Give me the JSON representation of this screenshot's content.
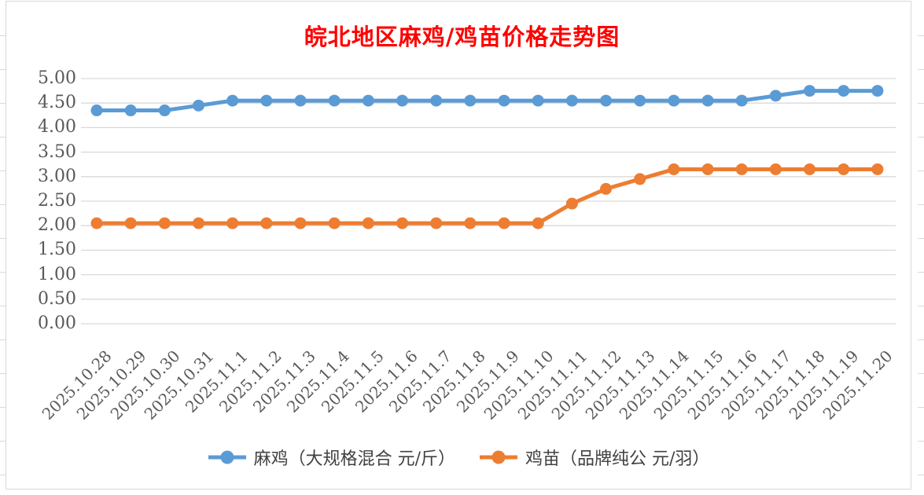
{
  "title": {
    "text": "皖北地区麻鸡/鸡苗价格走势图",
    "color": "#FF0000"
  },
  "chart_data": {
    "type": "line",
    "title": "皖北地区麻鸡/鸡苗价格走势图",
    "categories": [
      "2025.10.28",
      "2025.10.29",
      "2025.10.30",
      "2025.10.31",
      "2025.11.1",
      "2025.11.2",
      "2025.11.3",
      "2025.11.4",
      "2025.11.5",
      "2025.11.6",
      "2025.11.7",
      "2025.11.8",
      "2025.11.9",
      "2025.11.10",
      "2025.11.11",
      "2025.11.12",
      "2025.11.13",
      "2025.11.14",
      "2025.11.15",
      "2025.11.16",
      "2025.11.17",
      "2025.11.18",
      "2025.11.19",
      "2025.11.20"
    ],
    "series": [
      {
        "name": "麻鸡（大规格混合 元/斤）",
        "color": "#5B9BD5",
        "values": [
          4.35,
          4.35,
          4.35,
          4.45,
          4.55,
          4.55,
          4.55,
          4.55,
          4.55,
          4.55,
          4.55,
          4.55,
          4.55,
          4.55,
          4.55,
          4.55,
          4.55,
          4.55,
          4.55,
          4.55,
          4.65,
          4.75,
          4.75,
          4.75
        ]
      },
      {
        "name": "鸡苗（品牌纯公 元/羽）",
        "color": "#ED7D31",
        "values": [
          2.05,
          2.05,
          2.05,
          2.05,
          2.05,
          2.05,
          2.05,
          2.05,
          2.05,
          2.05,
          2.05,
          2.05,
          2.05,
          2.05,
          2.45,
          2.75,
          2.95,
          3.15,
          3.15,
          3.15,
          3.15,
          3.15,
          3.15,
          3.15
        ]
      }
    ],
    "ylim": [
      0,
      5
    ],
    "ytick_step": 0.5,
    "ytick_labels": [
      "0.00",
      "0.50",
      "1.00",
      "1.50",
      "2.00",
      "2.50",
      "3.00",
      "3.50",
      "4.00",
      "4.50",
      "5.00"
    ],
    "grid": true,
    "legend_position": "bottom",
    "axis_label_color": "#595959",
    "gridline_color": "#D9D9D9",
    "marker_style": "circle"
  }
}
